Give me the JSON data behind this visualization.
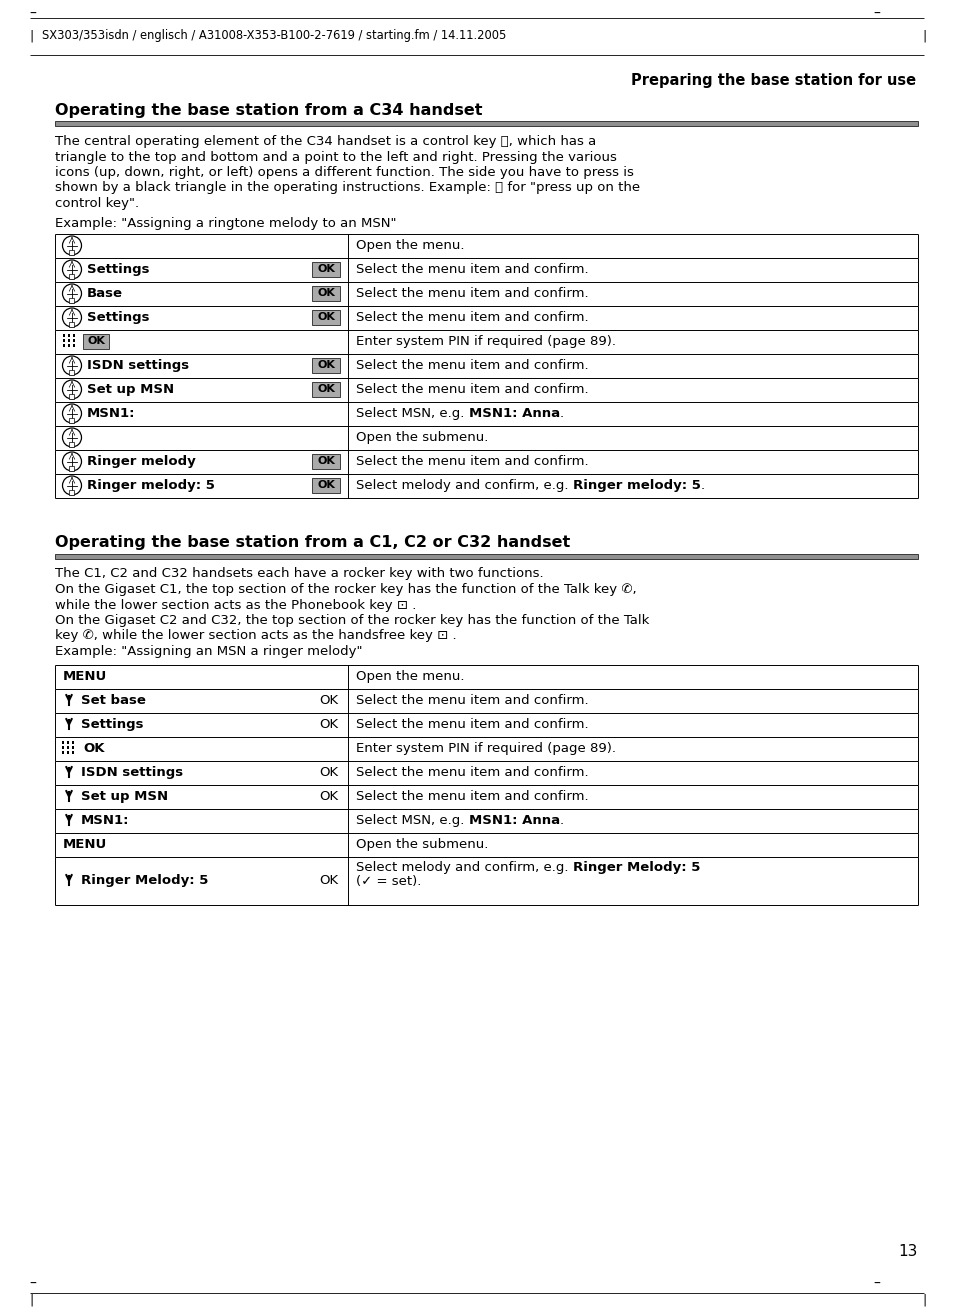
{
  "header_text": "SX303/353isdn / englisch / A31008-X353-B100-2-7619 / starting.fm / 14.11.2005",
  "right_header": "Preparing the base station for use",
  "section1_title": "Operating the base station from a C34 handset",
  "section1_body": [
    "The central operating element of the C34 handset is a control key Ⓢ, which has a",
    "triangle to the top and bottom and a point to the left and right. Pressing the various",
    "icons (up, down, right, or left) opens a different function. The side you have to press is",
    "shown by a black triangle in the operating instructions. Example: Ⓢ for \"press up on the",
    "control key\"."
  ],
  "section1_example": "Example: \"Assigning a ringtone melody to an MSN\"",
  "table1_rows": [
    {
      "label": "",
      "has_ok": false,
      "right": "Open the menu.",
      "right_bold": "",
      "type": "ctrl"
    },
    {
      "label": "Settings",
      "has_ok": true,
      "right": "Select the menu item and confirm.",
      "right_bold": "",
      "type": "ctrl"
    },
    {
      "label": "Base",
      "has_ok": true,
      "right": "Select the menu item and confirm.",
      "right_bold": "",
      "type": "ctrl"
    },
    {
      "label": "Settings",
      "has_ok": true,
      "right": "Select the menu item and confirm.",
      "right_bold": "",
      "type": "ctrl"
    },
    {
      "label": "",
      "has_ok": false,
      "right": "Enter system PIN if required (page 89).",
      "right_bold": "",
      "type": "pin"
    },
    {
      "label": "ISDN settings",
      "has_ok": true,
      "right": "Select the menu item and confirm.",
      "right_bold": "",
      "type": "ctrl"
    },
    {
      "label": "Set up MSN",
      "has_ok": true,
      "right": "Select the menu item and confirm.",
      "right_bold": "",
      "type": "ctrl"
    },
    {
      "label": "MSN1:",
      "has_ok": false,
      "right": "Select MSN, e.g. MSN1: Anna.",
      "right_bold": "MSN1: Anna",
      "type": "ctrl"
    },
    {
      "label": "",
      "has_ok": false,
      "right": "Open the submenu.",
      "right_bold": "",
      "type": "ctrl"
    },
    {
      "label": "Ringer melody",
      "has_ok": true,
      "right": "Select the menu item and confirm.",
      "right_bold": "",
      "type": "ctrl"
    },
    {
      "label": "Ringer melody: 5",
      "has_ok": true,
      "right": "Select melody and confirm, e.g. Ringer melody: 5.",
      "right_bold": "Ringer melody: 5",
      "type": "ctrl"
    }
  ],
  "section2_title": "Operating the base station from a C1, C2 or C32 handset",
  "section2_body": [
    "The C1, C2 and C32 handsets each have a rocker key with two functions.",
    "On the Gigaset C1, the top section of the rocker key has the function of the Talk key ✆,",
    "while the lower section acts as the Phonebook key ⊡ .",
    "On the Gigaset C2 and C32, the top section of the rocker key has the function of the Talk",
    "key ✆, while the lower section acts as the handsfree key ⊡ .",
    "Example: \"Assigning an MSN a ringer melody\""
  ],
  "table2_rows": [
    {
      "label": "",
      "has_ok": false,
      "right": "Open the menu.",
      "right_bold": "",
      "type": "menu",
      "multiline": false
    },
    {
      "label": "Set base",
      "has_ok": true,
      "right": "Select the menu item and confirm.",
      "right_bold": "",
      "type": "arrow",
      "multiline": false
    },
    {
      "label": "Settings",
      "has_ok": true,
      "right": "Select the menu item and confirm.",
      "right_bold": "",
      "type": "arrow",
      "multiline": false
    },
    {
      "label": "",
      "has_ok": false,
      "right": "Enter system PIN if required (page 89).",
      "right_bold": "",
      "type": "pin2",
      "multiline": false
    },
    {
      "label": "ISDN settings",
      "has_ok": true,
      "right": "Select the menu item and confirm.",
      "right_bold": "",
      "type": "arrow",
      "multiline": false
    },
    {
      "label": "Set up MSN",
      "has_ok": true,
      "right": "Select the menu item and confirm.",
      "right_bold": "",
      "type": "arrow",
      "multiline": false
    },
    {
      "label": "MSN1:",
      "has_ok": false,
      "right": "Select MSN, e.g. MSN1: Anna.",
      "right_bold": "MSN1: Anna",
      "type": "arrow",
      "multiline": false
    },
    {
      "label": "",
      "has_ok": false,
      "right": "Open the submenu.",
      "right_bold": "",
      "type": "menu",
      "multiline": false
    },
    {
      "label": "Ringer Melody: 5",
      "has_ok": true,
      "right": "Select melody and confirm, e.g. Ringer Melody: 5\n(✓ = set).",
      "right_bold": "Ringer Melody: 5",
      "type": "arrow",
      "multiline": true
    }
  ],
  "page_number": "13"
}
